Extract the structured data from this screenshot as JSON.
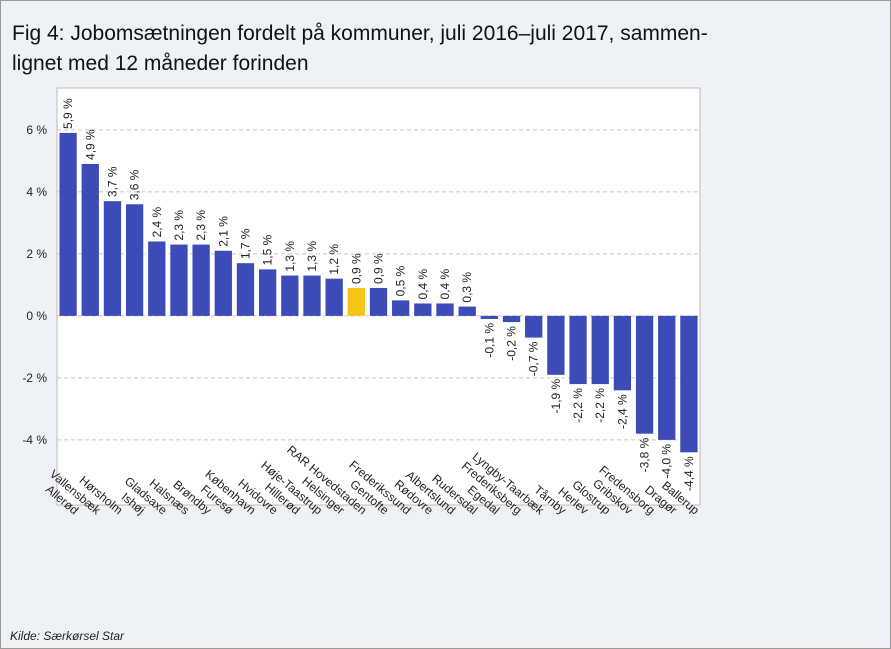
{
  "chart_data": {
    "type": "bar",
    "title_lines": [
      "Fig 4: Jobomsætningen fordelt på kommuner, juli 2016–juli 2017, sammen-",
      "lignet med 12 måneder forinden"
    ],
    "source": "Kilde: Særkørsel  Star",
    "categories": [
      "Allerød",
      "Vallensbæk",
      "Hørsholm",
      "Ishøj",
      "Gladsaxe",
      "Halsnæs",
      "Brøndby",
      "Furesø",
      "København",
      "Hvidovre",
      "Hillerød",
      "Høje-Taastrup",
      "Helsinger",
      "RAR Hovedstaden",
      "Gentofte",
      "Frederikssund",
      "Rødovre",
      "Albertslund",
      "Rudersdal",
      "Egedal",
      "Frederiksberg",
      "Lyngby-Taarbæk",
      "Tårnby",
      "Herlev",
      "Glostrup",
      "Gribskov",
      "Fredensborg",
      "Dragør",
      "Ballerup"
    ],
    "values": [
      5.9,
      4.9,
      3.7,
      3.6,
      2.4,
      2.3,
      2.3,
      2.1,
      1.7,
      1.5,
      1.3,
      1.3,
      1.2,
      0.9,
      0.9,
      0.5,
      0.4,
      0.4,
      0.3,
      -0.1,
      -0.2,
      -0.7,
      -1.9,
      -2.2,
      -2.2,
      -2.4,
      -3.8,
      -4.0,
      -4.4
    ],
    "value_labels": [
      "5,9 %",
      "4,9 %",
      "3,7 %",
      "3,6 %",
      "2,4 %",
      "2,3 %",
      "2,3 %",
      "2,1 %",
      "1,7 %",
      "1,5 %",
      "1,3 %",
      "1,3 %",
      "1,2 %",
      "0,9 %",
      "0,9 %",
      "0,5 %",
      "0,4 %",
      "0,4 %",
      "0,3 %",
      "-0,1 %",
      "-0,2 %",
      "-0,7 %",
      "-1,9 %",
      "-2,2 %",
      "-2,2 %",
      "-2,4 %",
      "-3,8 %",
      "-4,0 %",
      "-4,4 %"
    ],
    "colors": [
      "#3d4bb8",
      "#3d4bb8",
      "#3d4bb8",
      "#3d4bb8",
      "#3d4bb8",
      "#3d4bb8",
      "#3d4bb8",
      "#3d4bb8",
      "#3d4bb8",
      "#3d4bb8",
      "#3d4bb8",
      "#3d4bb8",
      "#3d4bb8",
      "#f5c518",
      "#3d4bb8",
      "#3d4bb8",
      "#3d4bb8",
      "#3d4bb8",
      "#3d4bb8",
      "#3d4bb8",
      "#3d4bb8",
      "#3d4bb8",
      "#3d4bb8",
      "#3d4bb8",
      "#3d4bb8",
      "#3d4bb8",
      "#3d4bb8",
      "#3d4bb8",
      "#3d4bb8"
    ],
    "ylim": [
      -6.1,
      7.35
    ],
    "yticks": [
      {
        "value": 6,
        "label": "6 %"
      },
      {
        "value": 4,
        "label": "4 %"
      },
      {
        "value": 2,
        "label": "2 %"
      },
      {
        "value": 0,
        "label": "0 %"
      },
      {
        "value": -2,
        "label": "-2 %"
      },
      {
        "value": -4,
        "label": "-4 %"
      }
    ],
    "grid": true
  }
}
